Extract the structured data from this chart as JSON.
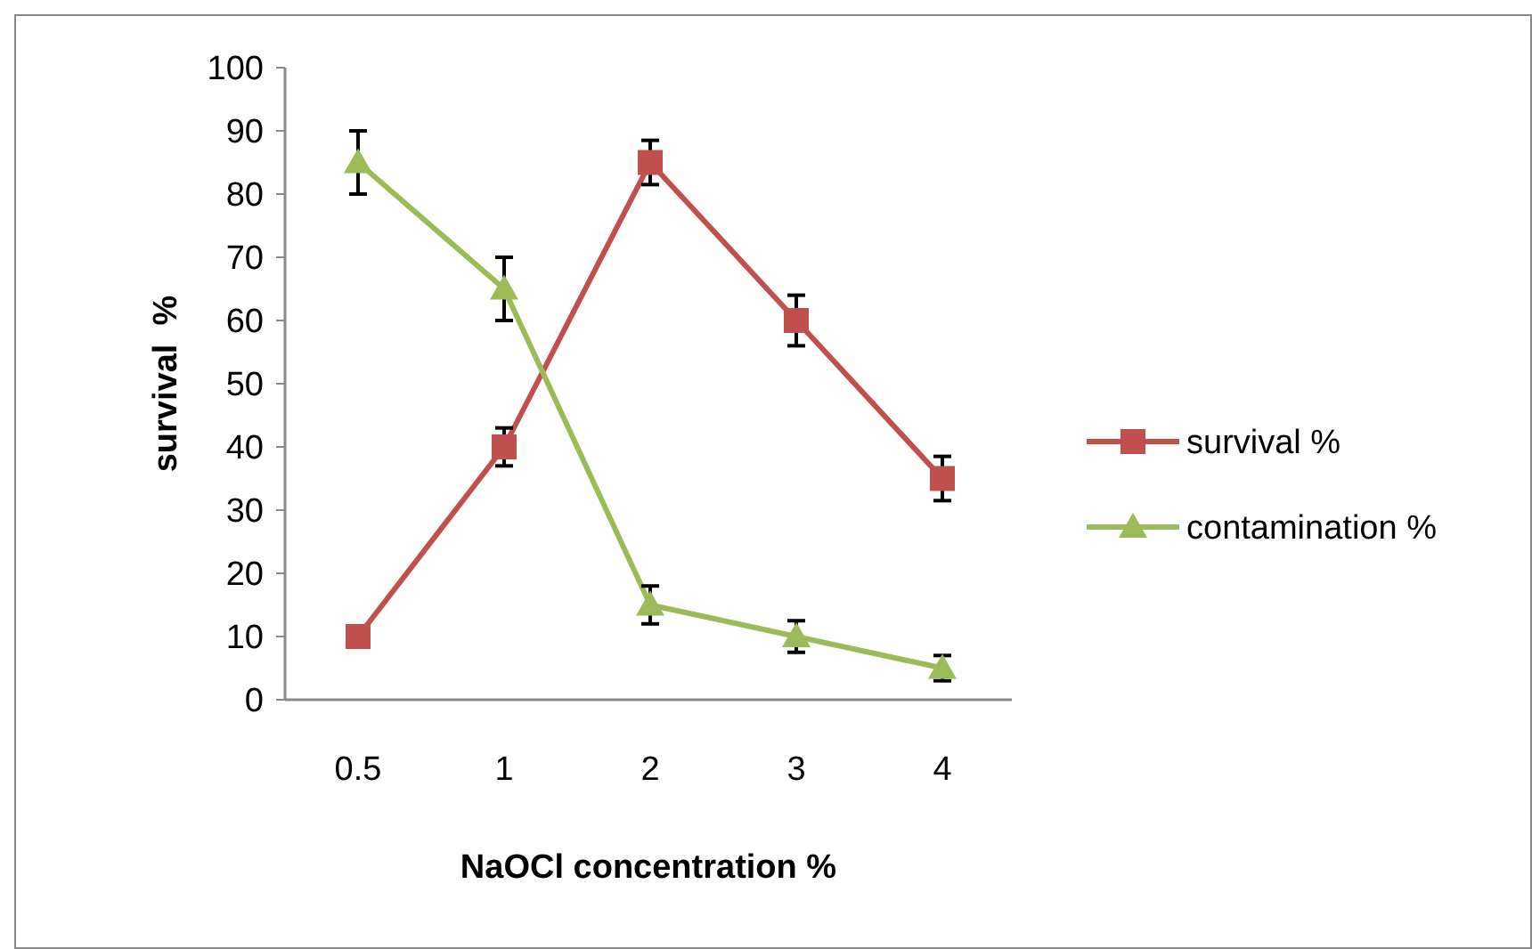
{
  "chart_data": {
    "type": "line",
    "xlabel": "NaOCl concentration %",
    "ylabel": "survival  %",
    "categories": [
      "0.5",
      "1",
      "2",
      "3",
      "4"
    ],
    "ylim": [
      0,
      100
    ],
    "yticks": [
      0,
      10,
      20,
      30,
      40,
      50,
      60,
      70,
      80,
      90,
      100
    ],
    "grid": false,
    "legend": "right",
    "line_style": "solid",
    "series": [
      {
        "name": "survival %",
        "color": "#c0504d",
        "marker": "square",
        "values": [
          10,
          40,
          85,
          60,
          35
        ],
        "errors": [
          null,
          3,
          3.5,
          4,
          3.5
        ]
      },
      {
        "name": "contamination %",
        "color": "#9bbb59",
        "marker": "triangle",
        "values": [
          85,
          65,
          15,
          10,
          5
        ],
        "errors": [
          5,
          5,
          3,
          2.5,
          2
        ]
      }
    ]
  }
}
